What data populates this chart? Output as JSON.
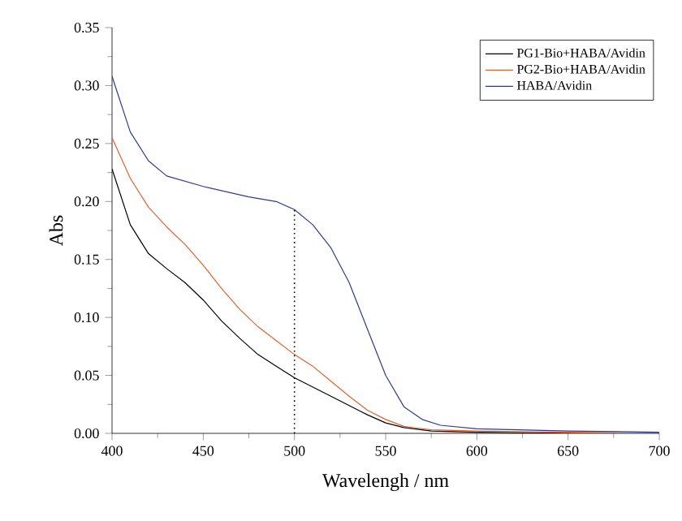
{
  "chart_data": {
    "type": "line",
    "xlabel": "Wavelengh / nm",
    "ylabel": "Abs",
    "xlim": [
      400,
      700
    ],
    "ylim": [
      0,
      0.35
    ],
    "xticks": [
      400,
      450,
      500,
      550,
      600,
      650,
      700
    ],
    "yticks": [
      {
        "value": 0,
        "label": "0.00"
      },
      {
        "value": 0.05,
        "label": "0.05"
      },
      {
        "value": 0.1,
        "label": "0.10"
      },
      {
        "value": 0.15,
        "label": "0.15"
      },
      {
        "value": 0.2,
        "label": "0.20"
      },
      {
        "value": 0.25,
        "label": "0.25"
      },
      {
        "value": 0.3,
        "label": "0.30"
      },
      {
        "value": 0.35,
        "label": "0.35"
      }
    ],
    "legend": "top right",
    "grid": false,
    "marker": "none",
    "ref_lines": [
      {
        "axis": "x",
        "value": 500,
        "line_style": "dotted",
        "color": "#000000"
      }
    ],
    "series": [
      {
        "name": "PG1-Bio+HABA/Avidin",
        "color": "#000000",
        "x": [
          400,
          410,
          420,
          430,
          440,
          450,
          460,
          470,
          480,
          490,
          500,
          510,
          520,
          530,
          540,
          550,
          560,
          575,
          600,
          650,
          700
        ],
        "values": [
          0.228,
          0.18,
          0.155,
          0.142,
          0.13,
          0.115,
          0.097,
          0.082,
          0.068,
          0.058,
          0.048,
          0.04,
          0.032,
          0.024,
          0.016,
          0.009,
          0.005,
          0.002,
          0.001,
          0.0,
          0.0
        ]
      },
      {
        "name": "PG2-Bio+HABA/Avidin",
        "color": "#e0622f",
        "x": [
          400,
          410,
          420,
          430,
          440,
          450,
          460,
          470,
          480,
          490,
          500,
          510,
          520,
          530,
          540,
          550,
          560,
          575,
          600,
          650,
          700
        ],
        "values": [
          0.255,
          0.22,
          0.195,
          0.178,
          0.163,
          0.145,
          0.125,
          0.107,
          0.092,
          0.08,
          0.068,
          0.058,
          0.045,
          0.032,
          0.02,
          0.012,
          0.006,
          0.003,
          0.002,
          0.001,
          0.0
        ]
      },
      {
        "name": "HABA/Avidin",
        "color": "#2e3a8f",
        "x": [
          400,
          410,
          420,
          430,
          450,
          475,
          490,
          500,
          510,
          520,
          530,
          540,
          550,
          560,
          570,
          580,
          600,
          650,
          700
        ],
        "values": [
          0.308,
          0.26,
          0.235,
          0.222,
          0.213,
          0.204,
          0.2,
          0.193,
          0.18,
          0.16,
          0.13,
          0.09,
          0.05,
          0.023,
          0.012,
          0.007,
          0.004,
          0.002,
          0.001
        ]
      }
    ]
  }
}
